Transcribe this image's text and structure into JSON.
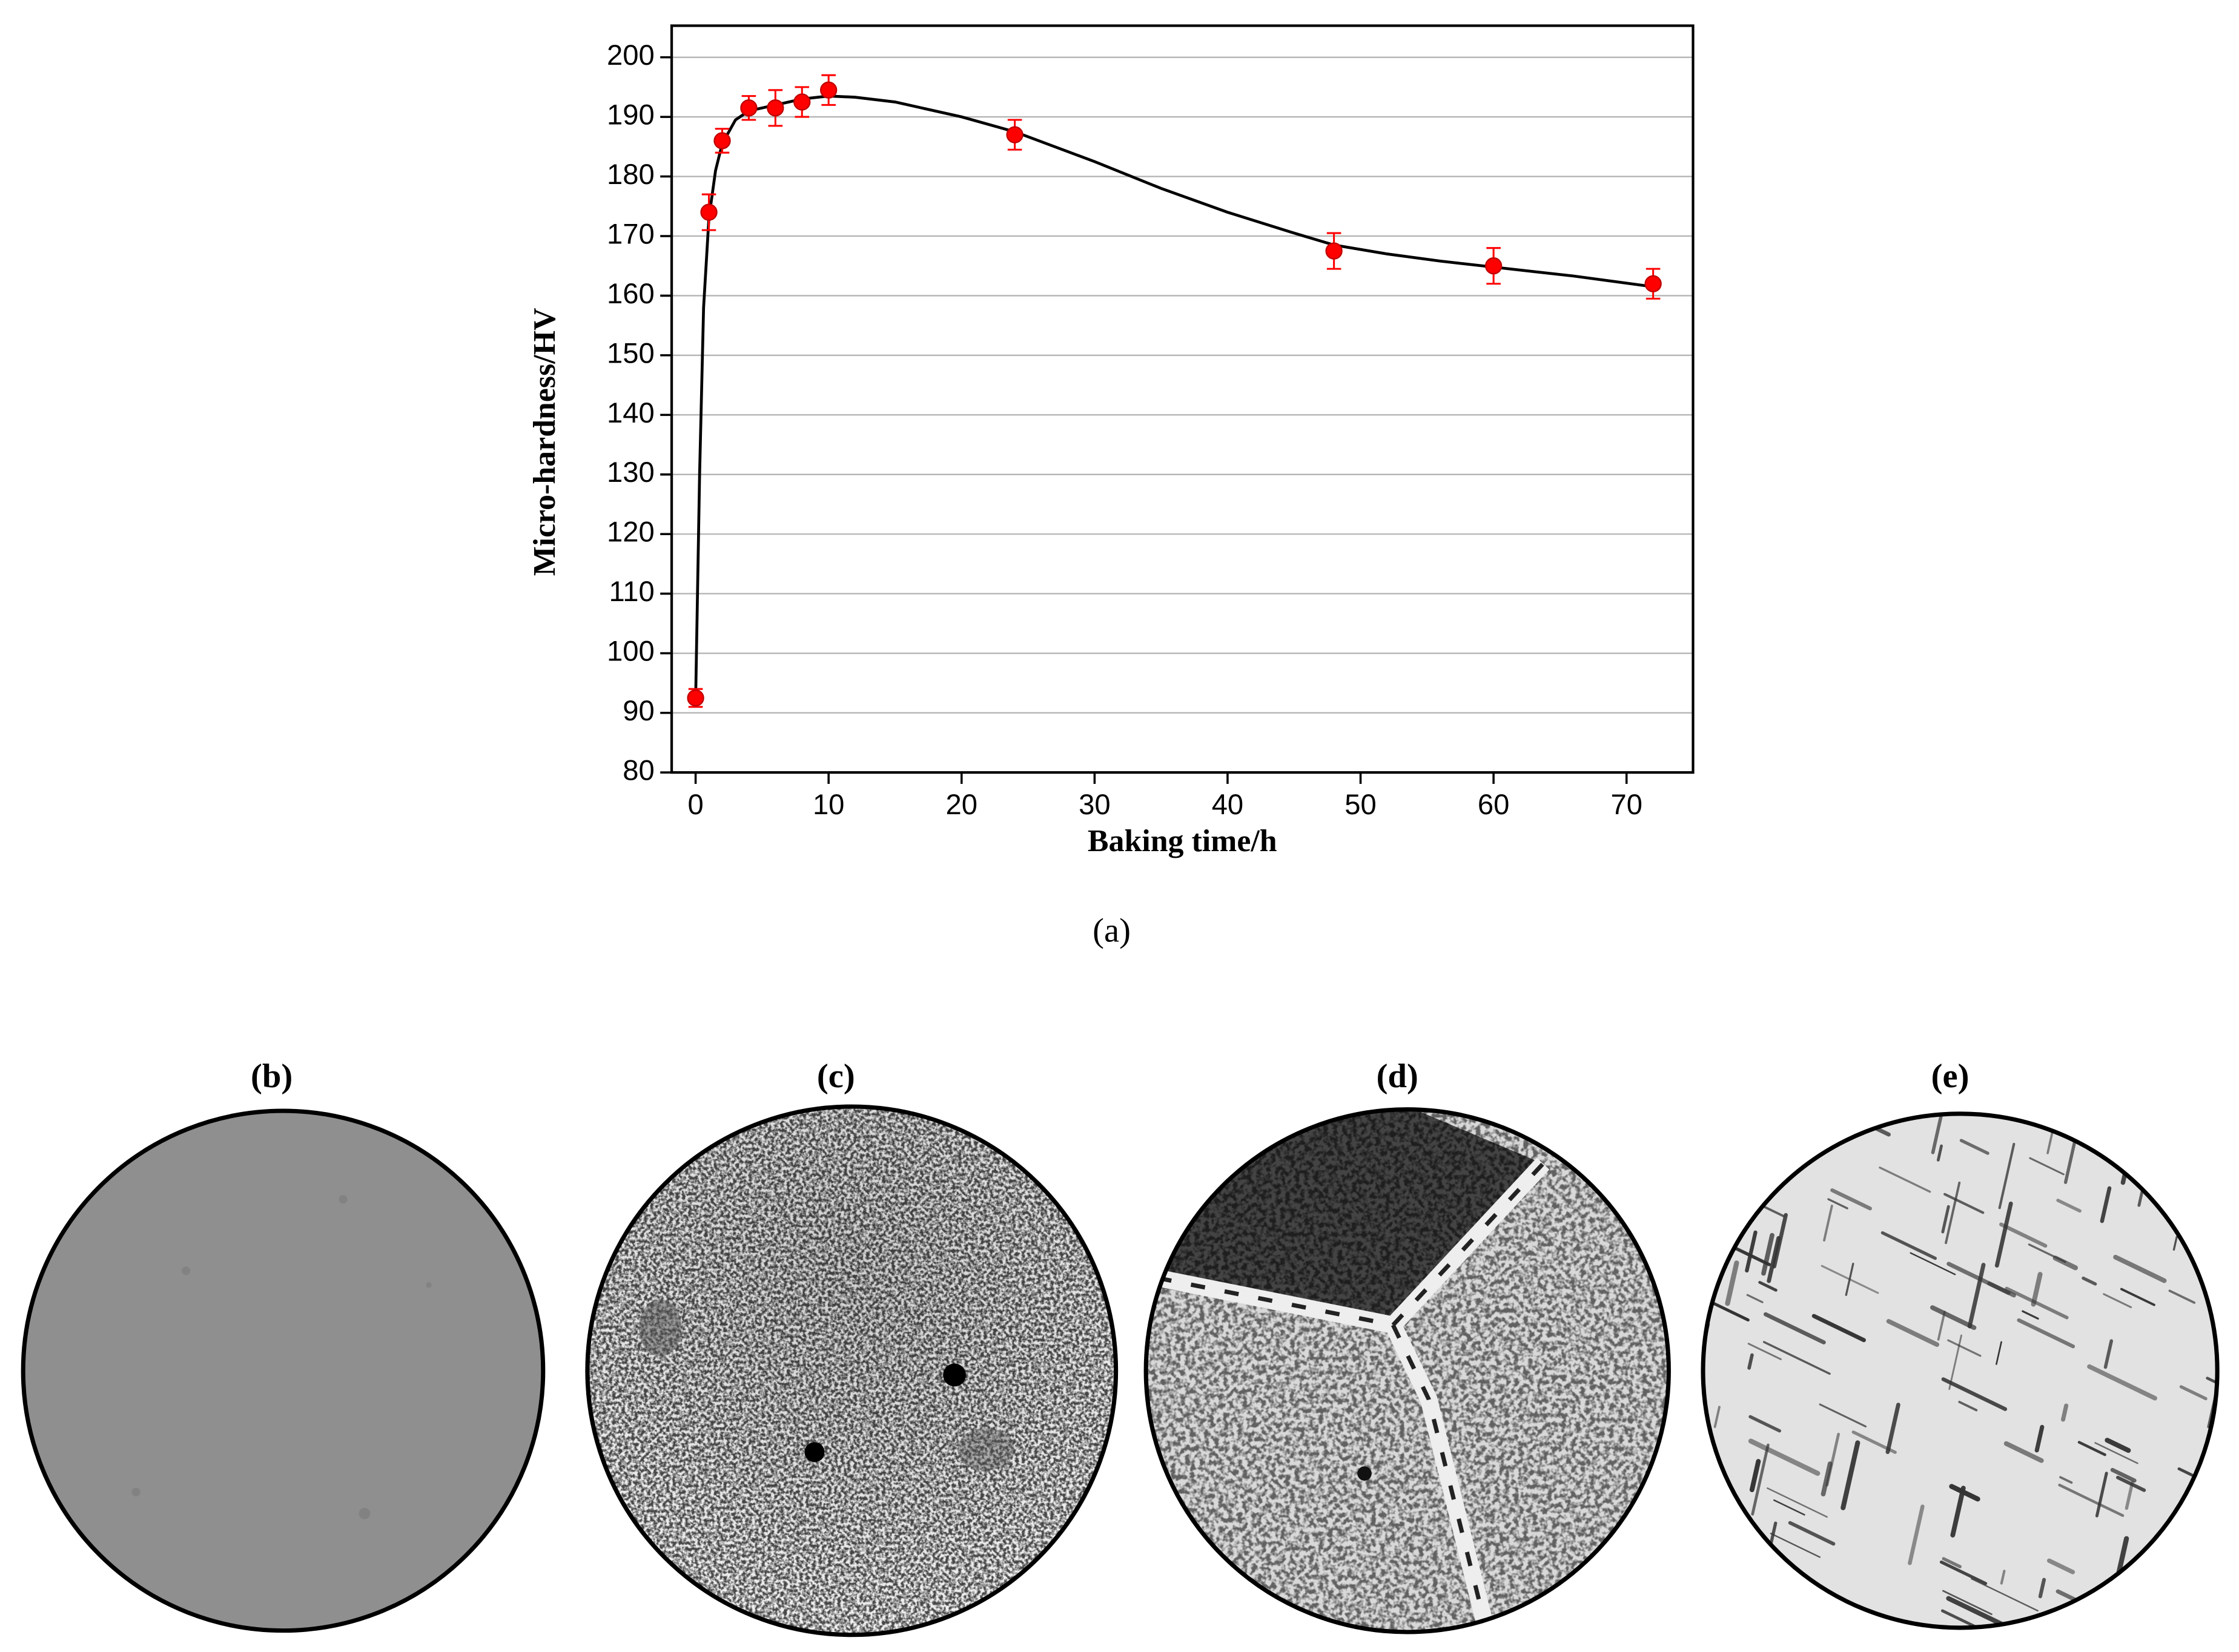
{
  "chart_data": {
    "type": "scatter",
    "x_label": "Baking time/h",
    "y_label": "Micro-hardness/HV",
    "caption": "(a)",
    "x": [
      0,
      1,
      2,
      4,
      6,
      8,
      10,
      24,
      48,
      60,
      72
    ],
    "values": [
      92.5,
      174,
      186,
      191.5,
      191.5,
      192.5,
      194.5,
      187,
      167.5,
      165,
      162
    ],
    "errors": [
      1.5,
      3,
      2,
      2,
      3,
      2.5,
      2.5,
      2.5,
      3,
      3,
      2.5
    ],
    "color": "#ff0000",
    "fit": {
      "color": "#000000",
      "x": [
        0,
        0.3,
        0.6,
        1,
        1.5,
        2,
        3,
        4,
        6,
        8,
        10,
        12,
        15,
        20,
        24,
        30,
        35,
        40,
        45,
        48,
        52,
        56,
        60,
        66,
        72
      ],
      "values": [
        92,
        130,
        158,
        173,
        181,
        185.5,
        189.5,
        191,
        192,
        193,
        193.5,
        193.3,
        192.5,
        190,
        187.5,
        182.5,
        178,
        174,
        170.5,
        168.5,
        167,
        165.8,
        164.8,
        163.3,
        161.5
      ]
    },
    "xlim": [
      -1.8,
      75
    ],
    "ylim": [
      80,
      205.3
    ],
    "xticks": [
      0,
      10,
      20,
      30,
      40,
      50,
      60,
      70
    ],
    "yticks": [
      80,
      90,
      100,
      110,
      120,
      130,
      140,
      150,
      160,
      170,
      180,
      190,
      200
    ],
    "grid": true
  },
  "micrographs": [
    {
      "label": "(b)"
    },
    {
      "label": "(c)"
    },
    {
      "label": "(d)"
    },
    {
      "label": "(e)"
    }
  ]
}
